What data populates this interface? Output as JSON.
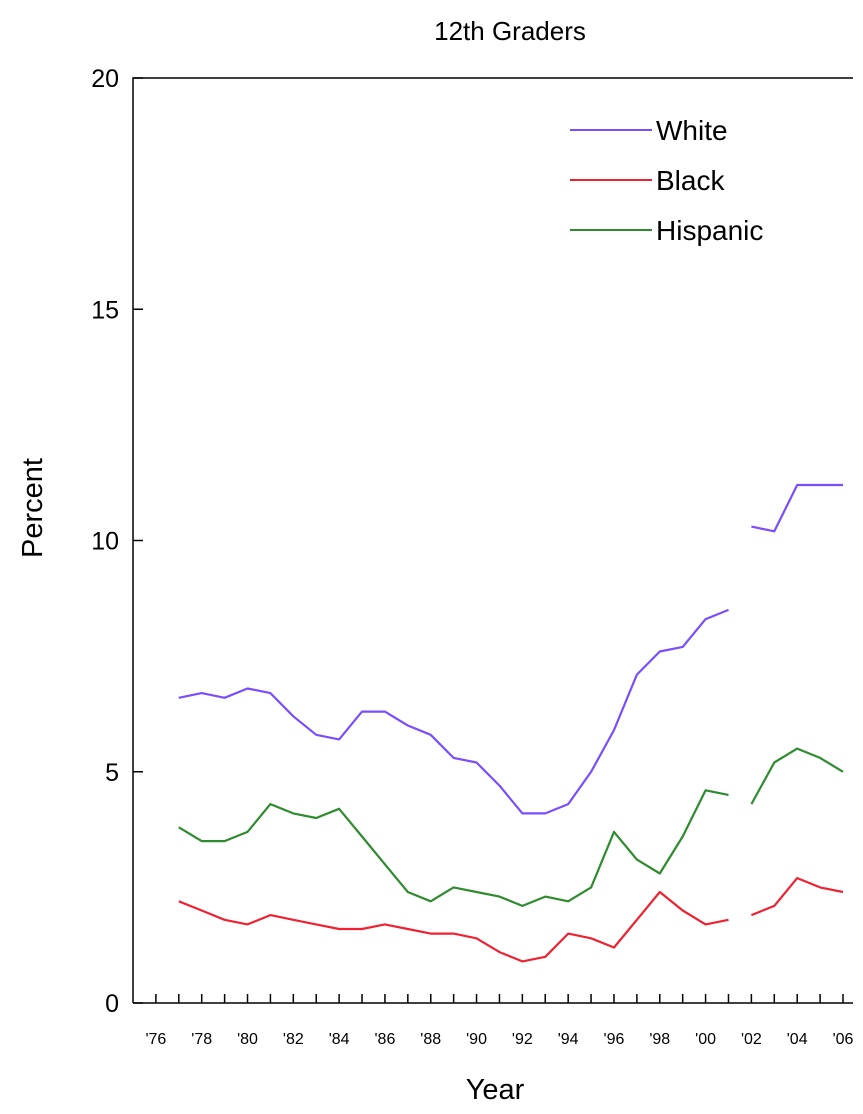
{
  "chart_data": {
    "type": "line",
    "title": "12th Graders",
    "xlabel": "Year",
    "ylabel": "Percent",
    "ylim": [
      0,
      20
    ],
    "yticks": [
      0,
      5,
      10,
      15,
      20
    ],
    "xlim": [
      1975,
      2006
    ],
    "xtick_labels": [
      "'76",
      "'78",
      "'80",
      "'82",
      "'84",
      "'86",
      "'88",
      "'90",
      "'92",
      "'94",
      "'96",
      "'98",
      "'00",
      "'02",
      "'04",
      "'06"
    ],
    "legend_position": "top-right",
    "grid": false,
    "series": [
      {
        "name": "White",
        "color": "#7a4dff",
        "segments": [
          {
            "x": [
              1977,
              1978,
              1979,
              1980,
              1981,
              1982,
              1983,
              1984,
              1985,
              1986,
              1987,
              1988,
              1989,
              1990,
              1991,
              1992,
              1993,
              1994,
              1995,
              1996,
              1997,
              1998,
              1999,
              2000,
              2001
            ],
            "y": [
              6.6,
              6.7,
              6.6,
              6.8,
              6.7,
              6.2,
              5.8,
              5.7,
              6.3,
              6.3,
              6.0,
              5.8,
              5.3,
              5.2,
              4.7,
              4.1,
              4.1,
              4.3,
              5.0,
              5.9,
              7.1,
              7.6,
              7.7,
              8.3,
              8.5
            ]
          },
          {
            "x": [
              2002,
              2003,
              2004,
              2005,
              2006
            ],
            "y": [
              10.3,
              10.2,
              11.2,
              11.2,
              11.2
            ]
          }
        ]
      },
      {
        "name": "Black",
        "color": "#ee2233",
        "segments": [
          {
            "x": [
              1977,
              1978,
              1979,
              1980,
              1981,
              1982,
              1983,
              1984,
              1985,
              1986,
              1987,
              1988,
              1989,
              1990,
              1991,
              1992,
              1993,
              1994,
              1995,
              1996,
              1997,
              1998,
              1999,
              2000,
              2001
            ],
            "y": [
              2.2,
              2.0,
              1.8,
              1.7,
              1.9,
              1.8,
              1.7,
              1.6,
              1.6,
              1.7,
              1.6,
              1.5,
              1.5,
              1.4,
              1.1,
              0.9,
              1.0,
              1.5,
              1.4,
              1.2,
              1.8,
              2.4,
              2.0,
              1.7,
              1.8
            ]
          },
          {
            "x": [
              2002,
              2003,
              2004,
              2005,
              2006
            ],
            "y": [
              1.9,
              2.1,
              2.7,
              2.5,
              2.4
            ]
          }
        ]
      },
      {
        "name": "Hispanic",
        "color": "#2e8b2e",
        "segments": [
          {
            "x": [
              1977,
              1978,
              1979,
              1980,
              1981,
              1982,
              1983,
              1984,
              1985,
              1986,
              1987,
              1988,
              1989,
              1990,
              1991,
              1992,
              1993,
              1994,
              1995,
              1996,
              1997,
              1998,
              1999,
              2000,
              2001
            ],
            "y": [
              3.8,
              3.5,
              3.5,
              3.7,
              4.3,
              4.1,
              4.0,
              4.2,
              3.6,
              3.0,
              2.4,
              2.2,
              2.5,
              2.4,
              2.3,
              2.1,
              2.3,
              2.2,
              2.5,
              3.7,
              3.1,
              2.8,
              3.6,
              4.6,
              4.5
            ]
          },
          {
            "x": [
              2002,
              2003,
              2004,
              2005,
              2006
            ],
            "y": [
              4.3,
              5.2,
              5.5,
              5.3,
              5.0
            ]
          }
        ]
      }
    ]
  }
}
